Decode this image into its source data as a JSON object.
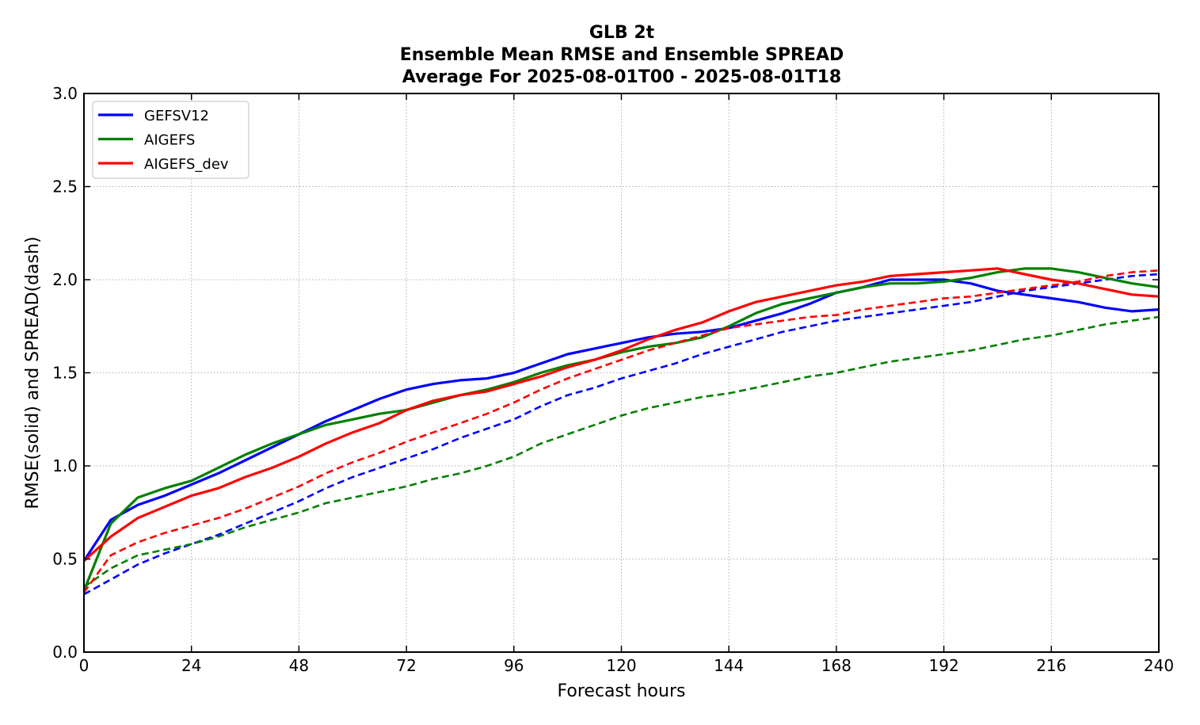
{
  "chart_data": {
    "type": "line",
    "title_lines": [
      "GLB 2t",
      "Ensemble Mean RMSE and Ensemble SPREAD",
      "Average For 2025-08-01T00 - 2025-08-01T18"
    ],
    "xlabel": "Forecast hours",
    "ylabel": "RMSE(solid) and SPREAD(dash)",
    "xlim": [
      0,
      240
    ],
    "ylim": [
      0.0,
      3.0
    ],
    "xticks": [
      0,
      24,
      48,
      72,
      96,
      120,
      144,
      168,
      192,
      216,
      240
    ],
    "yticks": [
      0.0,
      0.5,
      1.0,
      1.5,
      2.0,
      2.5,
      3.0
    ],
    "ytick_labels": [
      "0.0",
      "0.5",
      "1.0",
      "1.5",
      "2.0",
      "2.5",
      "3.0"
    ],
    "grid": true,
    "legend_position": "top-left",
    "x": [
      0,
      6,
      12,
      18,
      24,
      30,
      36,
      42,
      48,
      54,
      60,
      66,
      72,
      78,
      84,
      90,
      96,
      102,
      108,
      114,
      120,
      126,
      132,
      138,
      144,
      150,
      156,
      162,
      168,
      174,
      180,
      186,
      192,
      198,
      204,
      210,
      216,
      222,
      228,
      234,
      240
    ],
    "series": [
      {
        "name": "GEFSV12",
        "color": "#0000ff",
        "rmse": [
          0.49,
          0.71,
          0.79,
          0.84,
          0.9,
          0.96,
          1.03,
          1.1,
          1.17,
          1.24,
          1.3,
          1.36,
          1.41,
          1.44,
          1.46,
          1.47,
          1.5,
          1.55,
          1.6,
          1.63,
          1.66,
          1.69,
          1.71,
          1.72,
          1.74,
          1.78,
          1.82,
          1.87,
          1.93,
          1.96,
          2.0,
          2.0,
          2.0,
          1.98,
          1.94,
          1.92,
          1.9,
          1.88,
          1.85,
          1.83,
          1.84
        ],
        "spread": [
          0.31,
          0.39,
          0.47,
          0.53,
          0.58,
          0.63,
          0.69,
          0.75,
          0.81,
          0.88,
          0.94,
          0.99,
          1.04,
          1.09,
          1.15,
          1.2,
          1.25,
          1.32,
          1.38,
          1.42,
          1.47,
          1.51,
          1.55,
          1.6,
          1.64,
          1.68,
          1.72,
          1.75,
          1.78,
          1.8,
          1.82,
          1.84,
          1.86,
          1.88,
          1.91,
          1.94,
          1.96,
          1.98,
          2.0,
          2.02,
          2.03
        ]
      },
      {
        "name": "AIGEFS",
        "color": "#008000",
        "rmse": [
          0.33,
          0.69,
          0.83,
          0.88,
          0.92,
          0.99,
          1.06,
          1.12,
          1.17,
          1.22,
          1.25,
          1.28,
          1.3,
          1.34,
          1.38,
          1.41,
          1.45,
          1.5,
          1.54,
          1.57,
          1.61,
          1.64,
          1.66,
          1.69,
          1.75,
          1.82,
          1.87,
          1.9,
          1.93,
          1.96,
          1.98,
          1.98,
          1.99,
          2.01,
          2.04,
          2.06,
          2.06,
          2.04,
          2.01,
          1.98,
          1.96
        ],
        "spread": [
          0.35,
          0.45,
          0.52,
          0.55,
          0.58,
          0.62,
          0.67,
          0.71,
          0.75,
          0.8,
          0.83,
          0.86,
          0.89,
          0.93,
          0.96,
          1.0,
          1.05,
          1.12,
          1.17,
          1.22,
          1.27,
          1.31,
          1.34,
          1.37,
          1.39,
          1.42,
          1.45,
          1.48,
          1.5,
          1.53,
          1.56,
          1.58,
          1.6,
          1.62,
          1.65,
          1.68,
          1.7,
          1.73,
          1.76,
          1.78,
          1.8
        ]
      },
      {
        "name": "AIGEFS_dev",
        "color": "#ff0000",
        "rmse": [
          0.49,
          0.62,
          0.72,
          0.78,
          0.84,
          0.88,
          0.94,
          0.99,
          1.05,
          1.12,
          1.18,
          1.23,
          1.3,
          1.35,
          1.38,
          1.4,
          1.44,
          1.48,
          1.53,
          1.57,
          1.62,
          1.68,
          1.73,
          1.77,
          1.83,
          1.88,
          1.91,
          1.94,
          1.97,
          1.99,
          2.02,
          2.03,
          2.04,
          2.05,
          2.06,
          2.03,
          2.0,
          1.98,
          1.95,
          1.92,
          1.91
        ],
        "spread": [
          0.32,
          0.52,
          0.59,
          0.64,
          0.68,
          0.72,
          0.77,
          0.83,
          0.89,
          0.96,
          1.02,
          1.07,
          1.13,
          1.18,
          1.23,
          1.28,
          1.34,
          1.41,
          1.47,
          1.52,
          1.57,
          1.62,
          1.66,
          1.7,
          1.74,
          1.76,
          1.78,
          1.8,
          1.81,
          1.84,
          1.86,
          1.88,
          1.9,
          1.91,
          1.93,
          1.95,
          1.97,
          1.99,
          2.02,
          2.04,
          2.05
        ]
      }
    ]
  }
}
